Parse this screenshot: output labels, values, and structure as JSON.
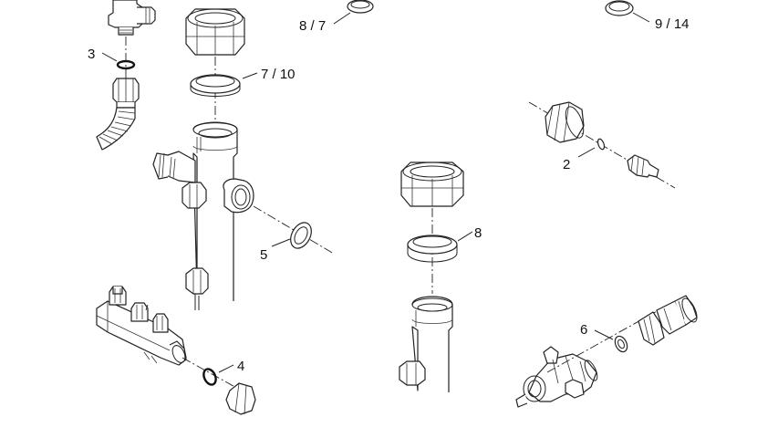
{
  "callouts": {
    "c_87": "8 / 7",
    "c_914": "9 / 14",
    "c_3": "3",
    "c_710": "7 / 10",
    "c_2": "2",
    "c_5": "5",
    "c_8": "8",
    "c_6": "6",
    "c_4": "4"
  }
}
